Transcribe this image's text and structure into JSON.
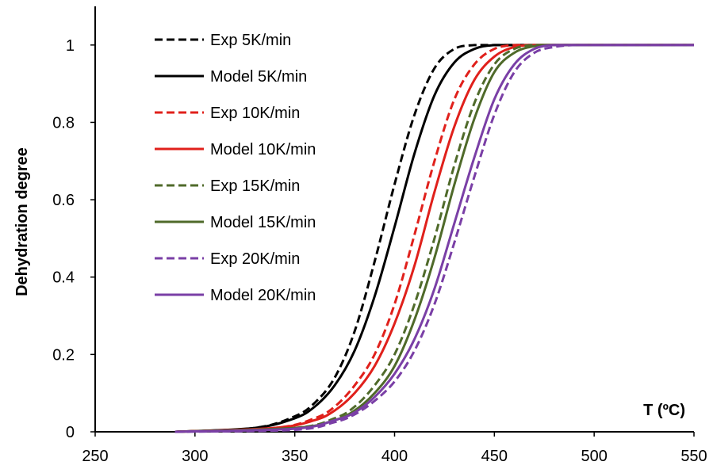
{
  "chart_data": {
    "type": "line",
    "xlabel": "T (ºC)",
    "ylabel": "Dehydration degree",
    "xlim": [
      250,
      550
    ],
    "ylim": [
      0,
      1.1
    ],
    "x_ticks": [
      "250",
      "300",
      "350",
      "400",
      "450",
      "500",
      "550"
    ],
    "y_ticks": [
      "0",
      "0.2",
      "0.4",
      "0.6",
      "0.8",
      "1"
    ],
    "grid": false,
    "legend_position": "top-left",
    "series": [
      {
        "name": "Exp 5K/min",
        "color": "#000000",
        "dash": true,
        "x": [
          290,
          330,
          350,
          360,
          370,
          380,
          390,
          400,
          410,
          420,
          430,
          440,
          445,
          450,
          475,
          550
        ],
        "y": [
          0,
          0.01,
          0.04,
          0.075,
          0.14,
          0.26,
          0.44,
          0.64,
          0.82,
          0.94,
          0.99,
          1,
          1,
          1,
          1,
          1
        ]
      },
      {
        "name": "Model 5K/min",
        "color": "#000000",
        "dash": false,
        "x": [
          290,
          330,
          350,
          360,
          370,
          380,
          390,
          400,
          410,
          420,
          430,
          440,
          450,
          460,
          475,
          550
        ],
        "y": [
          0,
          0.01,
          0.035,
          0.065,
          0.12,
          0.21,
          0.35,
          0.53,
          0.72,
          0.87,
          0.955,
          0.99,
          1,
          1,
          1,
          1
        ]
      },
      {
        "name": "Exp 10K/min",
        "color": "#e0201b",
        "dash": true,
        "x": [
          290,
          340,
          360,
          370,
          380,
          390,
          400,
          410,
          420,
          430,
          440,
          450,
          460,
          465,
          475,
          550
        ],
        "y": [
          0,
          0.01,
          0.035,
          0.065,
          0.12,
          0.2,
          0.33,
          0.51,
          0.7,
          0.86,
          0.95,
          0.99,
          1,
          1,
          1,
          1
        ]
      },
      {
        "name": "Model 10K/min",
        "color": "#e0201b",
        "dash": false,
        "x": [
          290,
          340,
          360,
          370,
          380,
          390,
          400,
          410,
          420,
          430,
          440,
          450,
          460,
          470,
          480,
          550
        ],
        "y": [
          0,
          0.01,
          0.03,
          0.055,
          0.1,
          0.17,
          0.28,
          0.43,
          0.62,
          0.79,
          0.91,
          0.97,
          0.995,
          1,
          1,
          1
        ]
      },
      {
        "name": "Exp 15K/min",
        "color": "#4f6a2a",
        "dash": true,
        "x": [
          290,
          350,
          370,
          380,
          390,
          400,
          410,
          420,
          430,
          440,
          450,
          460,
          470,
          480,
          550
        ],
        "y": [
          0,
          0.01,
          0.035,
          0.065,
          0.12,
          0.2,
          0.33,
          0.5,
          0.69,
          0.85,
          0.95,
          0.99,
          1,
          1,
          1
        ]
      },
      {
        "name": "Model 15K/min",
        "color": "#4f6a2a",
        "dash": false,
        "x": [
          290,
          350,
          370,
          380,
          390,
          400,
          410,
          420,
          430,
          440,
          450,
          460,
          470,
          480,
          550
        ],
        "y": [
          0,
          0.01,
          0.03,
          0.055,
          0.1,
          0.17,
          0.29,
          0.45,
          0.64,
          0.81,
          0.93,
          0.98,
          0.997,
          1,
          1
        ]
      },
      {
        "name": "Exp 20K/min",
        "color": "#7a3fa6",
        "dash": true,
        "x": [
          290,
          350,
          370,
          380,
          390,
          400,
          410,
          420,
          430,
          440,
          450,
          460,
          470,
          480,
          490,
          500,
          550
        ],
        "y": [
          0,
          0.005,
          0.025,
          0.045,
          0.08,
          0.13,
          0.21,
          0.33,
          0.49,
          0.66,
          0.82,
          0.93,
          0.98,
          0.995,
          1,
          1,
          1
        ]
      },
      {
        "name": "Model 20K/min",
        "color": "#7a3fa6",
        "dash": false,
        "x": [
          290,
          350,
          370,
          380,
          390,
          400,
          410,
          420,
          430,
          440,
          450,
          460,
          470,
          480,
          490,
          550
        ],
        "y": [
          0,
          0.008,
          0.03,
          0.05,
          0.09,
          0.15,
          0.24,
          0.37,
          0.54,
          0.71,
          0.86,
          0.95,
          0.99,
          1,
          1,
          1
        ]
      }
    ]
  }
}
